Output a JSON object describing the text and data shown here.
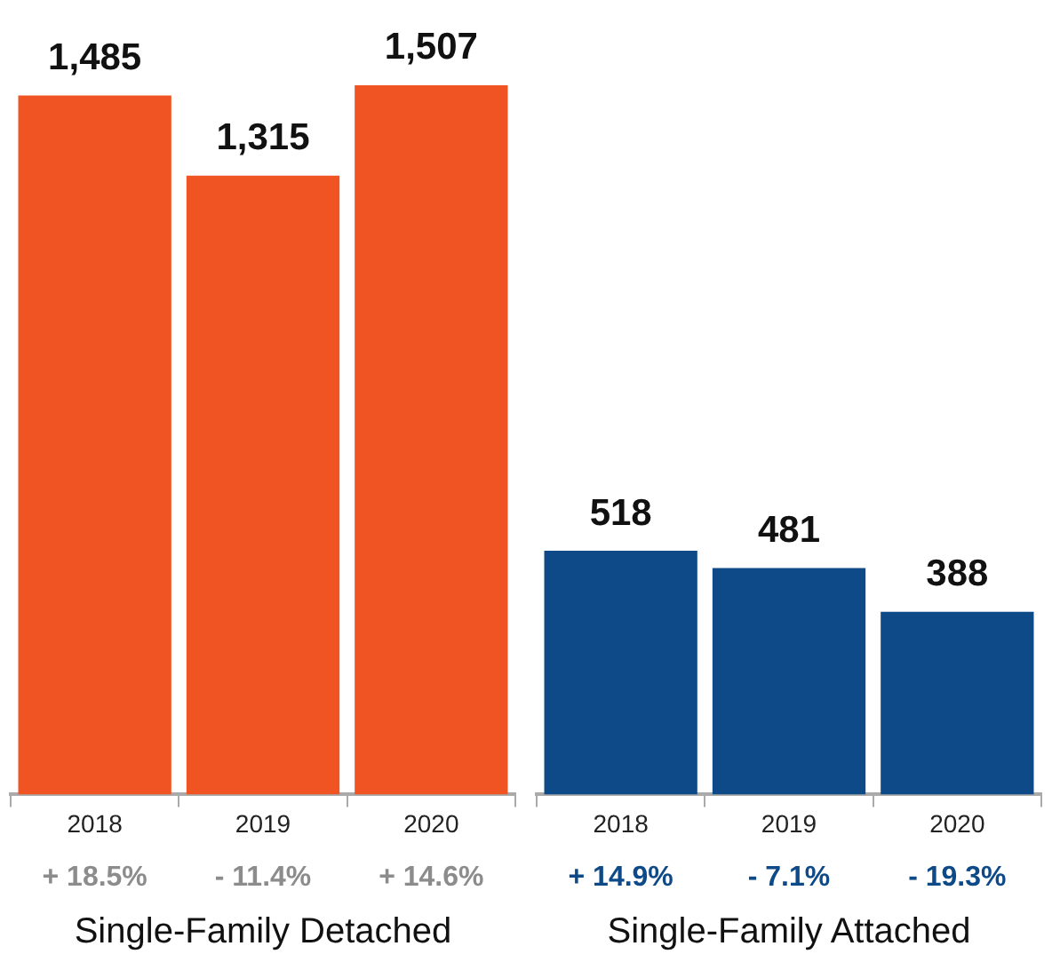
{
  "chart_data": [
    {
      "type": "bar",
      "xlabel": "Single-Family Detached",
      "categories": [
        "2018",
        "2019",
        "2020"
      ],
      "values": [
        1485,
        1315,
        1507
      ],
      "value_labels": [
        "1,485",
        "1,315",
        "1,507"
      ],
      "color": "#f05423",
      "tick_labels": "x",
      "legend": false,
      "annotations": [
        "+ 18.5%",
        "- 11.4%",
        "+ 14.6%"
      ]
    },
    {
      "type": "bar",
      "xlabel": "Single-Family Attached",
      "categories": [
        "2018",
        "2019",
        "2020"
      ],
      "values": [
        518,
        481,
        388
      ],
      "data_labels": true,
      "color": "#0e4a87",
      "tick_labels": "x",
      "legend": false,
      "annotations": [
        "+ 14.9%",
        "- 7.1%",
        "- 19.3%"
      ]
    }
  ]
}
